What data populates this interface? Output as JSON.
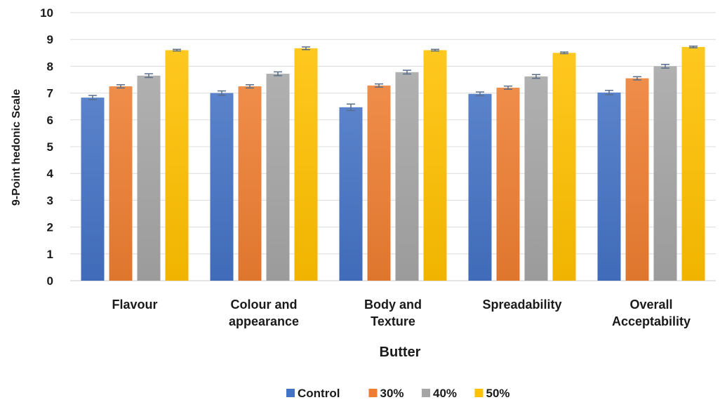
{
  "chart_data": {
    "type": "bar",
    "title": "",
    "xlabel": "Butter",
    "ylabel": "9-Point hedonic Scale",
    "ylim": [
      0,
      10
    ],
    "yticks": [
      "0",
      "1",
      "2",
      "3",
      "4",
      "5",
      "6",
      "7",
      "8",
      "9",
      "10"
    ],
    "grid": true,
    "legend_position": "bottom",
    "categories": [
      [
        "Flavour"
      ],
      [
        "Colour and",
        "appearance"
      ],
      [
        "Body and",
        "Texture"
      ],
      [
        "Spreadability"
      ],
      [
        "Overall",
        "Acceptability"
      ]
    ],
    "series": [
      {
        "name": "Control",
        "color": "#4472C4",
        "values": [
          6.83,
          7.0,
          6.47,
          6.97,
          7.02
        ],
        "errors": [
          0.08,
          0.08,
          0.12,
          0.07,
          0.08
        ]
      },
      {
        "name": "30%",
        "color": "#ED7D31",
        "values": [
          7.25,
          7.25,
          7.28,
          7.2,
          7.55
        ],
        "errors": [
          0.06,
          0.06,
          0.06,
          0.06,
          0.06
        ]
      },
      {
        "name": "40%",
        "color": "#A5A5A5",
        "values": [
          7.65,
          7.72,
          7.78,
          7.62,
          8.0
        ],
        "errors": [
          0.07,
          0.07,
          0.07,
          0.07,
          0.07
        ]
      },
      {
        "name": "50%",
        "color": "#FFC000",
        "values": [
          8.6,
          8.67,
          8.6,
          8.5,
          8.72
        ],
        "errors": [
          0.03,
          0.05,
          0.03,
          0.03,
          0.03
        ]
      }
    ]
  }
}
